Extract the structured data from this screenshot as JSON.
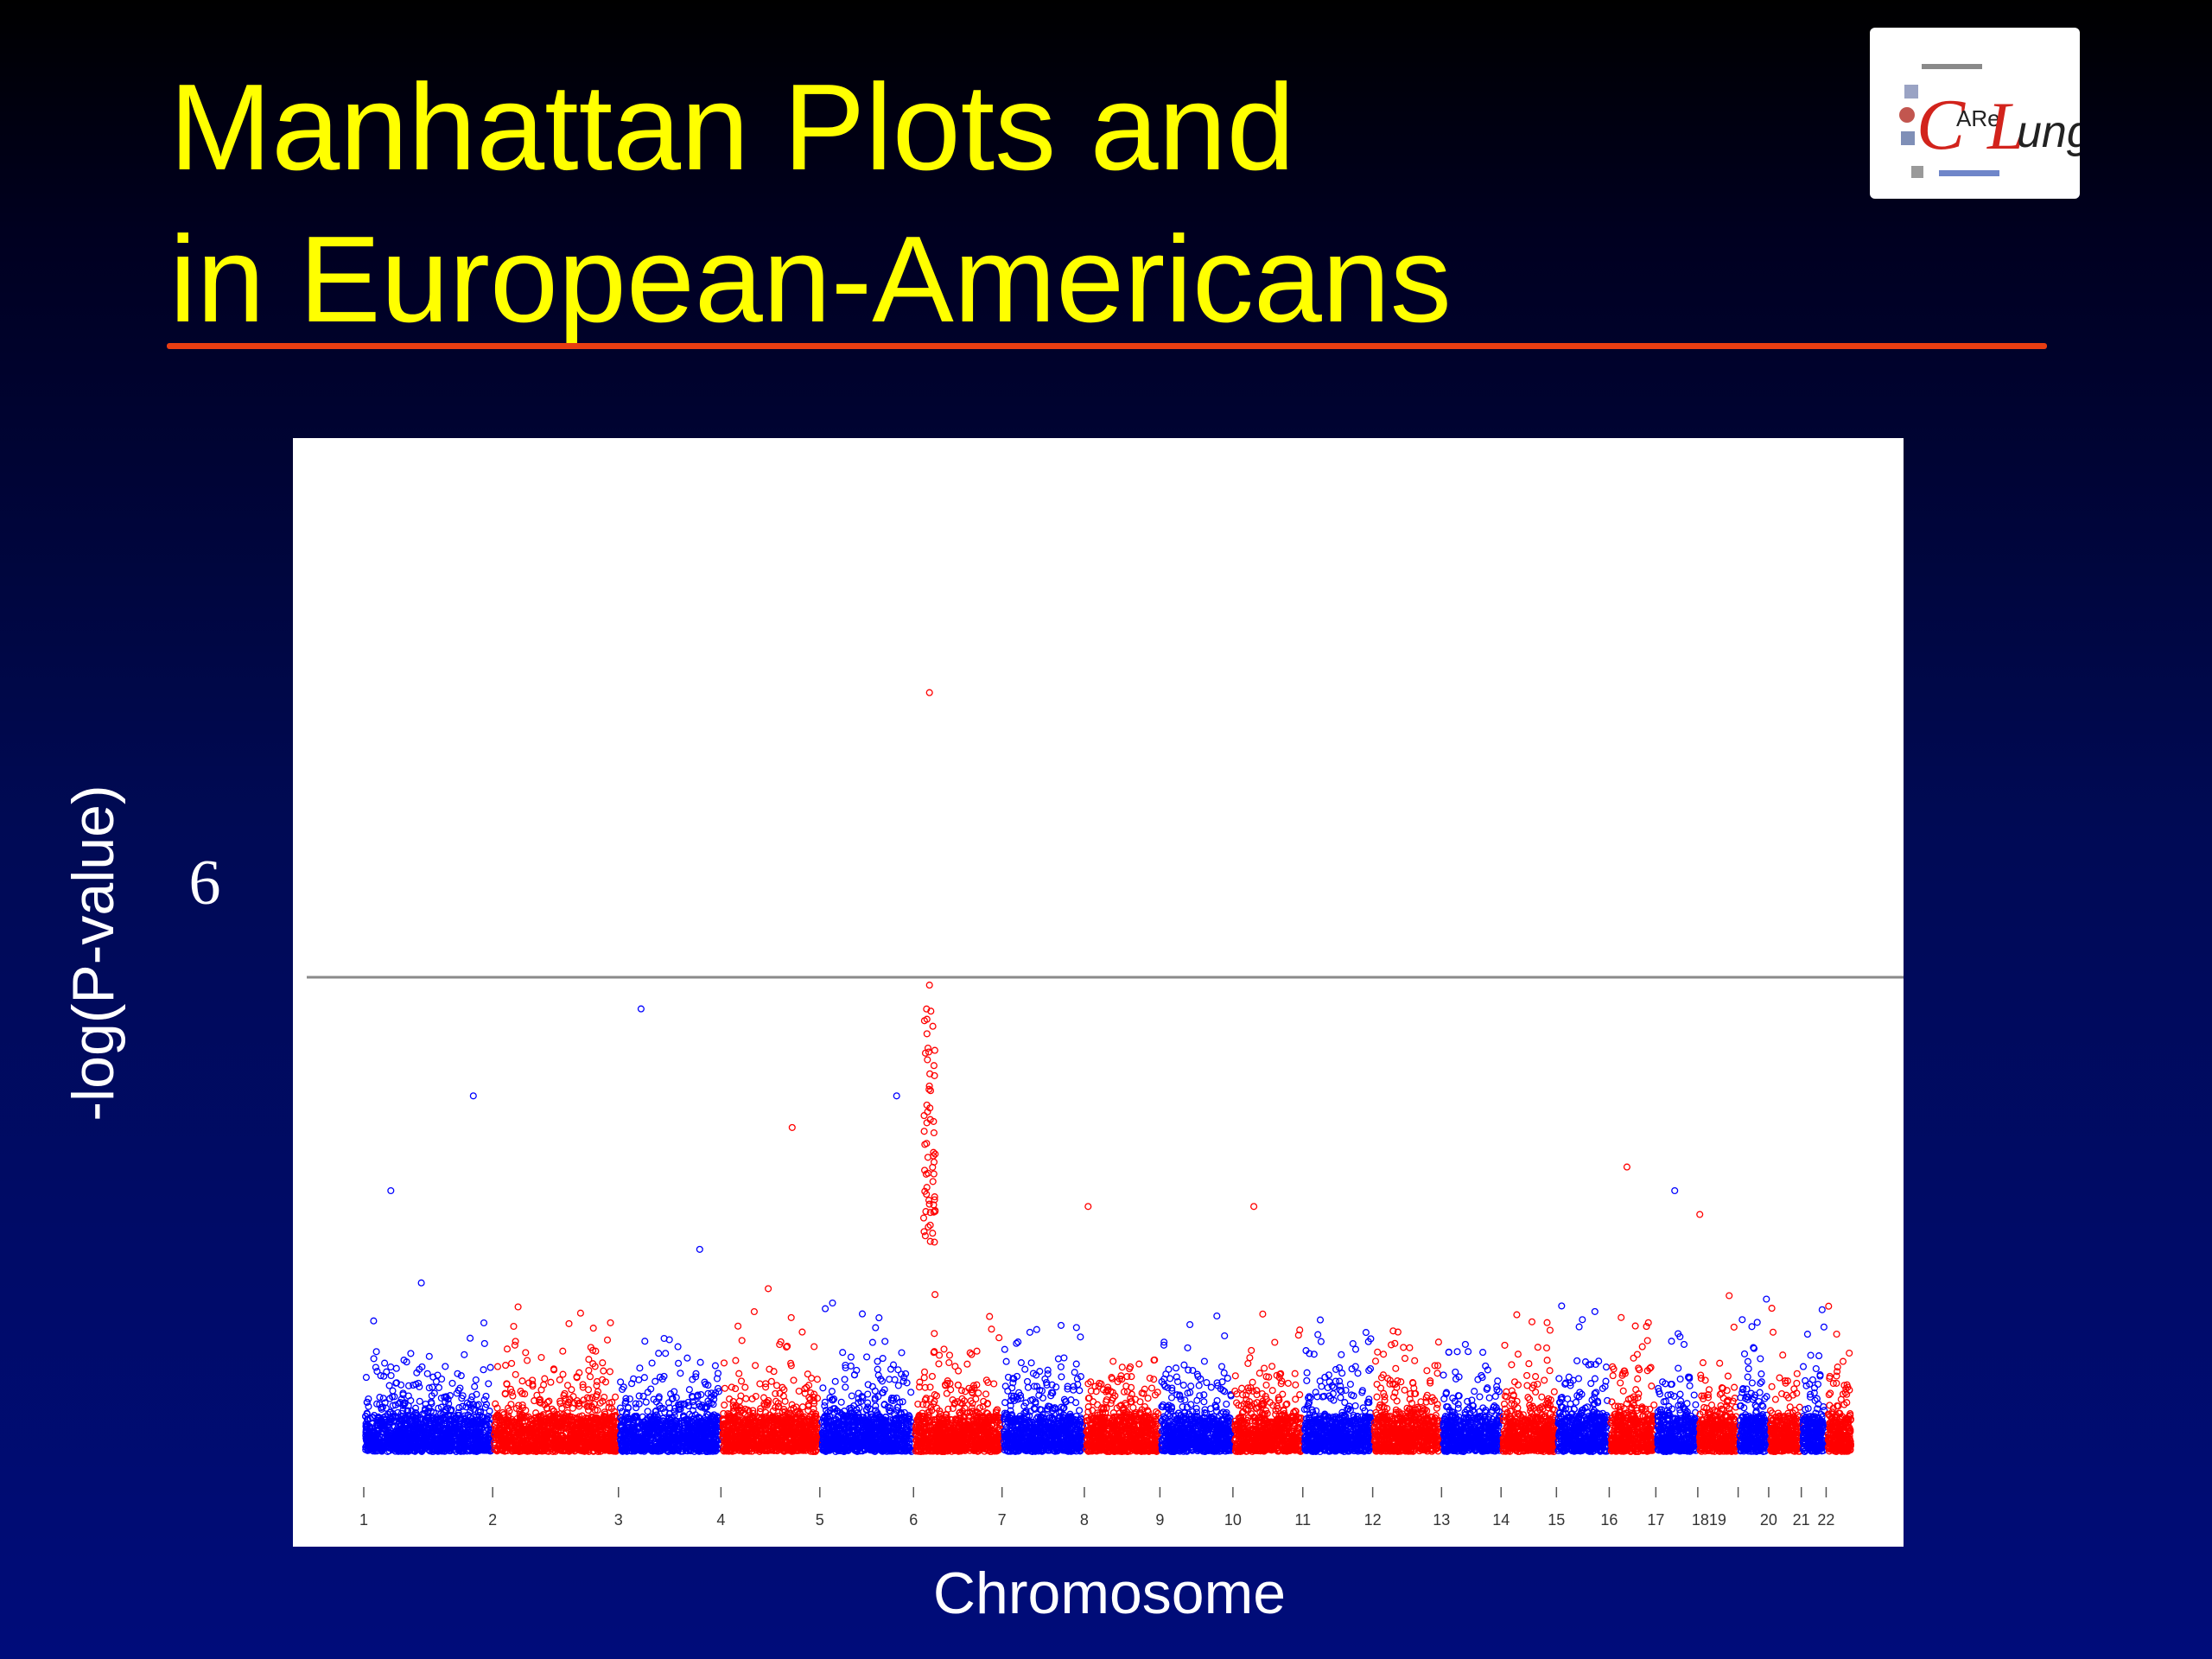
{
  "slide": {
    "title_line1": "Manhattan Plots and",
    "title_line2": "in European-Americans",
    "title_color": "#ffff00",
    "rule_color": "#e83d12",
    "threshold_text": "6"
  },
  "logo": {
    "name": "CARe Lung logo",
    "text_c": "C",
    "text_are": "ARe",
    "text_l": "L",
    "text_ung": "ung"
  },
  "chart_data": {
    "type": "scatter",
    "subtype": "manhattan",
    "xlabel": "Chromosome",
    "ylabel": "-log(P-value)",
    "ylim": [
      0,
      10
    ],
    "threshold": 6,
    "series_colors": [
      "#0000ff",
      "#ff0000"
    ],
    "chromosomes": [
      {
        "label": "1",
        "length": 249,
        "color": "#0000ff"
      },
      {
        "label": "2",
        "length": 243,
        "color": "#ff0000"
      },
      {
        "label": "3",
        "length": 198,
        "color": "#0000ff"
      },
      {
        "label": "4",
        "length": 191,
        "color": "#ff0000"
      },
      {
        "label": "5",
        "length": 181,
        "color": "#0000ff"
      },
      {
        "label": "6",
        "length": 171,
        "color": "#ff0000"
      },
      {
        "label": "7",
        "length": 159,
        "color": "#0000ff"
      },
      {
        "label": "8",
        "length": 146,
        "color": "#ff0000"
      },
      {
        "label": "9",
        "length": 141,
        "color": "#0000ff"
      },
      {
        "label": "10",
        "length": 135,
        "color": "#ff0000"
      },
      {
        "label": "11",
        "length": 135,
        "color": "#0000ff"
      },
      {
        "label": "12",
        "length": 133,
        "color": "#ff0000"
      },
      {
        "label": "13",
        "length": 115,
        "color": "#0000ff"
      },
      {
        "label": "14",
        "length": 107,
        "color": "#ff0000"
      },
      {
        "label": "15",
        "length": 102,
        "color": "#0000ff"
      },
      {
        "label": "16",
        "length": 90,
        "color": "#ff0000"
      },
      {
        "label": "17",
        "length": 81,
        "color": "#0000ff"
      },
      {
        "label": "18",
        "length": 78,
        "color": "#ff0000"
      },
      {
        "label": "19",
        "length": 59,
        "color": "#0000ff"
      },
      {
        "label": "20",
        "length": 63,
        "color": "#ff0000"
      },
      {
        "label": "21",
        "length": 48,
        "color": "#0000ff"
      },
      {
        "label": "22",
        "length": 51,
        "color": "#ff0000"
      }
    ],
    "tick_labels": [
      "1",
      "2",
      "3",
      "4",
      "5",
      "6",
      "7",
      "8",
      "9",
      "10",
      "11",
      "12",
      "13",
      "14",
      "15",
      "16",
      "17",
      "1819",
      "",
      "20",
      "21",
      "22"
    ],
    "top_hits": [
      {
        "chromosome": "6",
        "position": 0.18,
        "value": 9.6
      },
      {
        "chromosome": "6",
        "position": 0.18,
        "value": 5.9
      },
      {
        "chromosome": "3",
        "position": 0.22,
        "value": 5.6
      },
      {
        "chromosome": "1",
        "position": 0.85,
        "value": 4.5
      },
      {
        "chromosome": "5",
        "position": 0.82,
        "value": 4.5
      },
      {
        "chromosome": "4",
        "position": 0.72,
        "value": 4.1
      },
      {
        "chromosome": "16",
        "position": 0.38,
        "value": 3.6
      },
      {
        "chromosome": "17",
        "position": 0.45,
        "value": 3.3
      },
      {
        "chromosome": "1",
        "position": 0.21,
        "value": 3.3
      },
      {
        "chromosome": "10",
        "position": 0.3,
        "value": 3.1
      },
      {
        "chromosome": "8",
        "position": 0.05,
        "value": 3.1
      },
      {
        "chromosome": "18",
        "position": 0.05,
        "value": 3.0
      }
    ]
  }
}
